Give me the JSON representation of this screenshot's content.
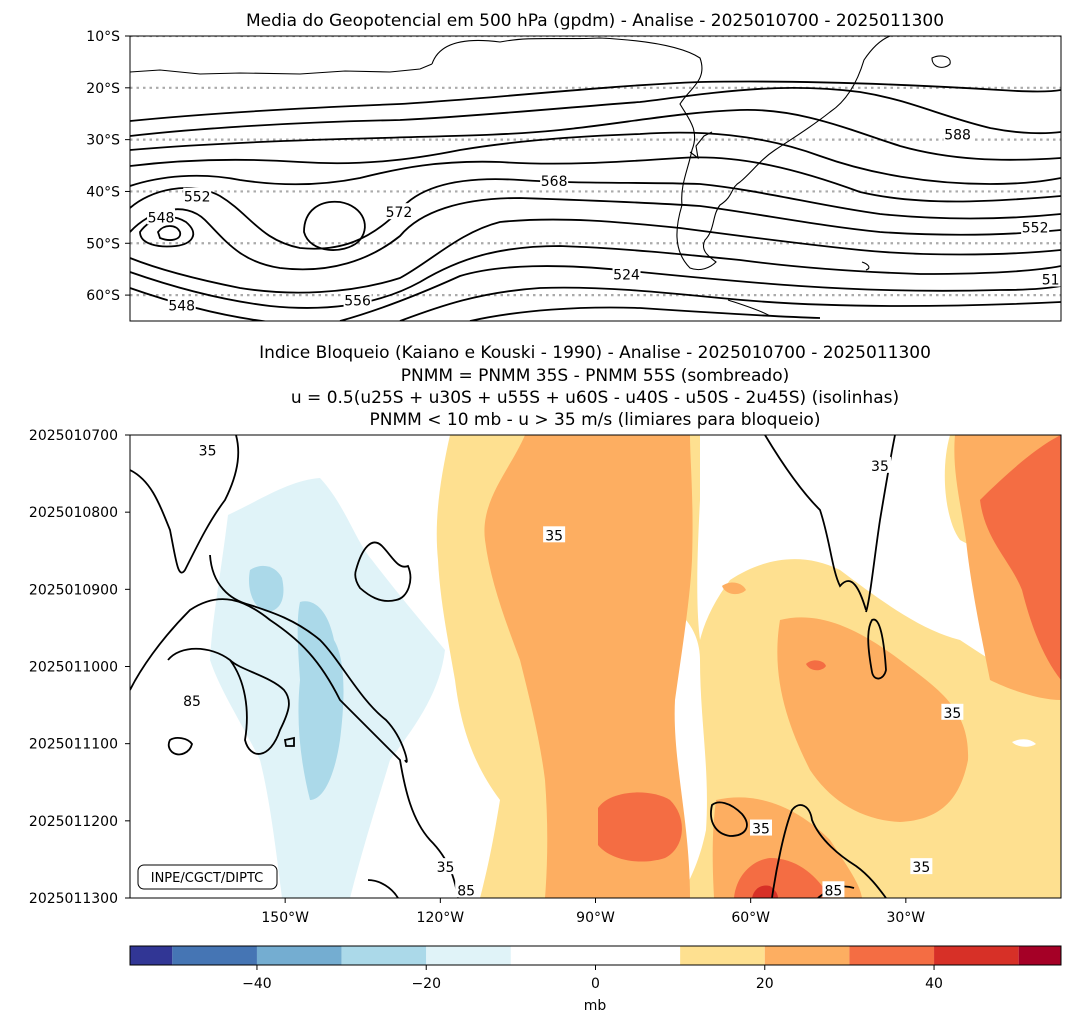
{
  "chart_data": [
    {
      "type": "contour",
      "title": "Media do Geopotencial em 500 hPa (gpdm) - Analise - 2025010700 - 2025011300",
      "units": "gpdm",
      "ylim": [
        -65,
        -10
      ],
      "xlim": [
        -180,
        0
      ],
      "yticks": [
        {
          "value": -10,
          "label": "10°S"
        },
        {
          "value": -20,
          "label": "20°S"
        },
        {
          "value": -30,
          "label": "30°S"
        },
        {
          "value": -40,
          "label": "40°S"
        },
        {
          "value": -50,
          "label": "50°S"
        },
        {
          "value": -60,
          "label": "60°S"
        }
      ],
      "gridlines": "dotted latitude lines every 10°",
      "contour_labels": [
        {
          "label": "588",
          "lon": -20,
          "lat": -29
        },
        {
          "label": "568",
          "lon": -98,
          "lat": -38
        },
        {
          "label": "572",
          "lon": -128,
          "lat": -44
        },
        {
          "label": "552",
          "lon": -167,
          "lat": -41
        },
        {
          "label": "548",
          "lon": -174,
          "lat": -45
        },
        {
          "label": "524",
          "lon": -84,
          "lat": -56
        },
        {
          "label": "556",
          "lon": -136,
          "lat": -61
        },
        {
          "label": "548",
          "lon": -170,
          "lat": -62
        },
        {
          "label": "552",
          "lon": -5,
          "lat": -47
        },
        {
          "label": "51",
          "lon": -2,
          "lat": -57
        }
      ]
    },
    {
      "type": "filled-contour",
      "title_lines": [
        "Indice Bloqueio (Kaiano e Kouski - 1990) - Analise - 2025010700 - 2025011300",
        "PNMM = PNMM 35S - PNMM 55S (sombreado)",
        "u = 0.5(u25S + u30S + u55S + u60S - u40S - u50S - 2u45S) (isolinhas)",
        "PNMM < 10 mb - u > 35 m/s (limiares para bloqueio)"
      ],
      "yticks": [
        "2025010700",
        "2025010800",
        "2025010900",
        "2025011000",
        "2025011100",
        "2025011200",
        "2025011300"
      ],
      "xticks": [
        {
          "value": -150,
          "label": "150°W"
        },
        {
          "value": -120,
          "label": "120°W"
        },
        {
          "value": -90,
          "label": "90°W"
        },
        {
          "value": -60,
          "label": "60°W"
        },
        {
          "value": -30,
          "label": "30°W"
        }
      ],
      "xlim": [
        -180,
        0
      ],
      "contour_labels": [
        {
          "label": "35",
          "lon": -165,
          "t": 0.2
        },
        {
          "label": "35",
          "lon": -98,
          "t": 1.3
        },
        {
          "label": "85",
          "lon": -168,
          "t": 3.45
        },
        {
          "label": "35",
          "lon": -35,
          "t": 0.4
        },
        {
          "label": "35",
          "lon": -21,
          "t": 3.6
        },
        {
          "label": "35",
          "lon": -58,
          "t": 5.1
        },
        {
          "label": "35",
          "lon": -119,
          "t": 5.6
        },
        {
          "label": "85",
          "lon": -115,
          "t": 5.9
        },
        {
          "label": "85",
          "lon": -44,
          "t": 5.9
        },
        {
          "label": "35",
          "lon": -27,
          "t": 5.6
        }
      ],
      "annotation": "INPE/CGCT/DIPTC",
      "colorbar": {
        "label": "mb",
        "ticks": [
          {
            "value": -40,
            "label": "−40"
          },
          {
            "value": -20,
            "label": "−20"
          },
          {
            "value": 0,
            "label": "0"
          },
          {
            "value": 20,
            "label": "20"
          },
          {
            "value": 40,
            "label": "40"
          }
        ],
        "range": [
          -55,
          55
        ],
        "levels": [
          {
            "from": -55,
            "to": -50,
            "color": "#313695"
          },
          {
            "from": -50,
            "to": -40,
            "color": "#4575b4"
          },
          {
            "from": -40,
            "to": -30,
            "color": "#74add1"
          },
          {
            "from": -30,
            "to": -20,
            "color": "#abd9e9"
          },
          {
            "from": -20,
            "to": -10,
            "color": "#e0f3f8"
          },
          {
            "from": -10,
            "to": 10,
            "color": "#ffffff"
          },
          {
            "from": 10,
            "to": 20,
            "color": "#fee090"
          },
          {
            "from": 20,
            "to": 30,
            "color": "#fdae61"
          },
          {
            "from": 30,
            "to": 40,
            "color": "#f46d43"
          },
          {
            "from": 40,
            "to": 50,
            "color": "#d73027"
          },
          {
            "from": 50,
            "to": 55,
            "color": "#a50026"
          }
        ]
      }
    }
  ]
}
